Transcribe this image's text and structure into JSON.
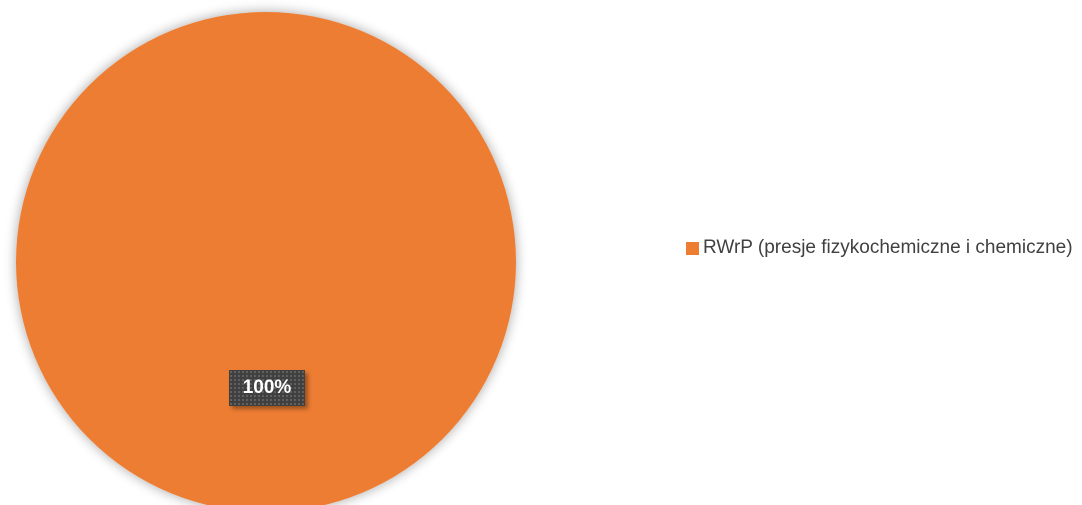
{
  "chart_data": {
    "type": "pie",
    "categories": [
      "RWrP (presje fizykochemiczne i chemiczne)"
    ],
    "values": [
      100
    ],
    "data_labels": [
      "100%"
    ],
    "colors": [
      "#ED7D31"
    ],
    "legend_position": "right",
    "title": ""
  }
}
